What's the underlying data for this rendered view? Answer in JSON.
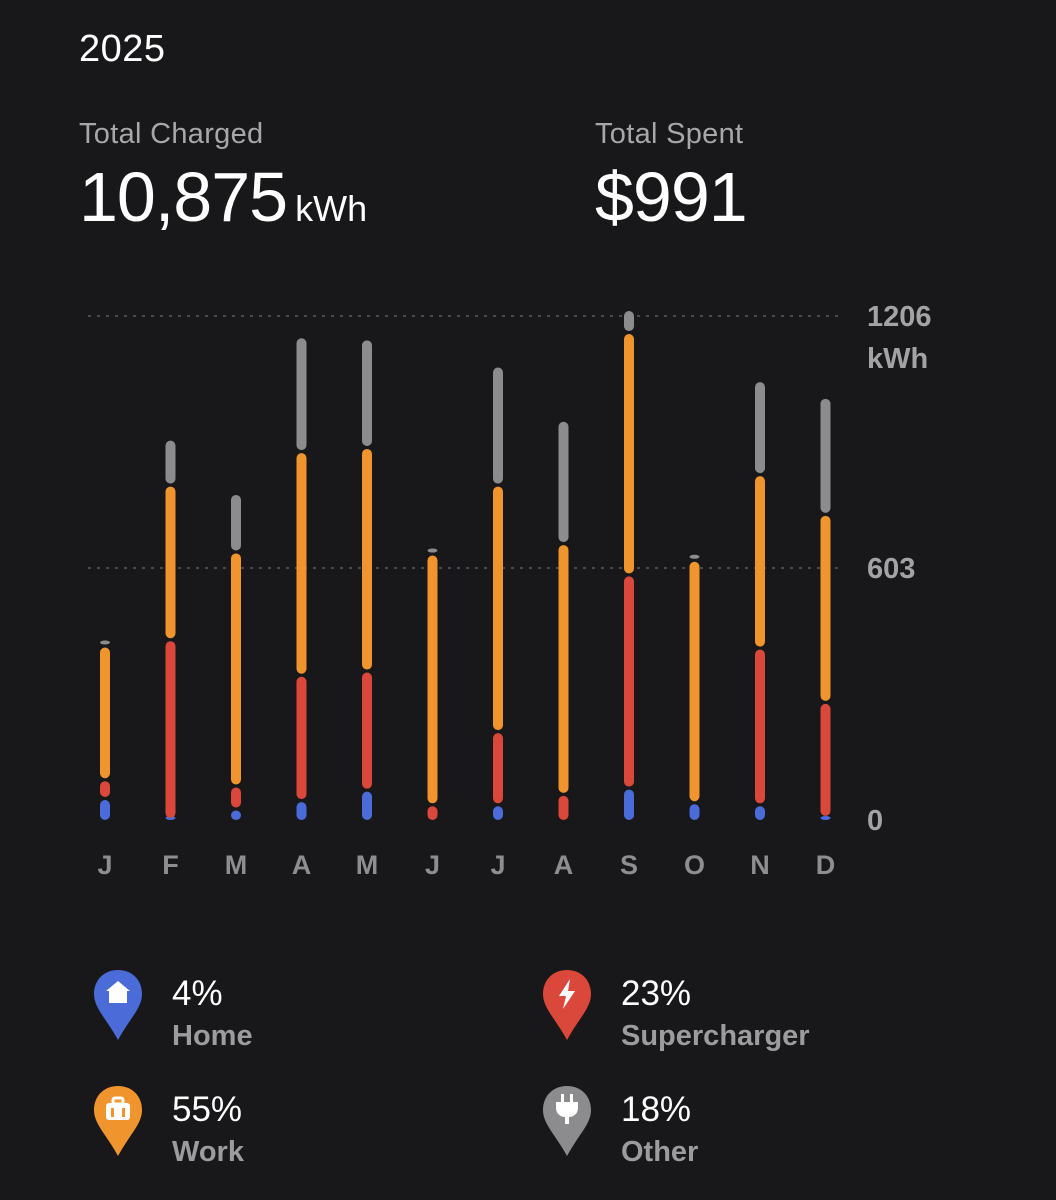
{
  "year": "2025",
  "stats": {
    "charged_label": "Total Charged",
    "charged_value": "10,875",
    "charged_unit": "kWh",
    "spent_label": "Total Spent",
    "spent_value": "$991"
  },
  "colors": {
    "home": "#4a6bd8",
    "supercharger": "#d9483b",
    "work": "#f0952e",
    "other": "#8c8c8e",
    "background": "#18181a"
  },
  "legend": [
    {
      "key": "home",
      "pct": "4%",
      "label": "Home",
      "icon": "home-icon"
    },
    {
      "key": "supercharger",
      "pct": "23%",
      "label": "Supercharger",
      "icon": "lightning-icon"
    },
    {
      "key": "work",
      "pct": "55%",
      "label": "Work",
      "icon": "briefcase-icon"
    },
    {
      "key": "other",
      "pct": "18%",
      "label": "Other",
      "icon": "plug-icon"
    }
  ],
  "chart_data": {
    "type": "bar",
    "stacked": true,
    "categories": [
      "J",
      "F",
      "M",
      "A",
      "M",
      "J",
      "J",
      "A",
      "S",
      "O",
      "N",
      "D"
    ],
    "series": [
      {
        "name": "Home",
        "key": "home",
        "values": [
          55,
          5,
          30,
          50,
          75,
          0,
          40,
          0,
          80,
          45,
          40,
          10
        ]
      },
      {
        "name": "Supercharger",
        "key": "supercharger",
        "values": [
          45,
          430,
          55,
          300,
          285,
          40,
          175,
          65,
          510,
          0,
          375,
          275
        ]
      },
      {
        "name": "Work",
        "key": "work",
        "values": [
          320,
          370,
          560,
          535,
          535,
          600,
          590,
          600,
          580,
          580,
          415,
          450
        ]
      },
      {
        "name": "Other",
        "key": "other",
        "values": [
          10,
          110,
          140,
          275,
          260,
          10,
          285,
          295,
          55,
          15,
          225,
          280
        ]
      }
    ],
    "yticks": [
      "1206",
      "603",
      "0"
    ],
    "y_tick_values": [
      1206,
      603,
      0
    ],
    "y_unit": "kWh",
    "ylim": [
      0,
      1206
    ],
    "grid": true
  }
}
